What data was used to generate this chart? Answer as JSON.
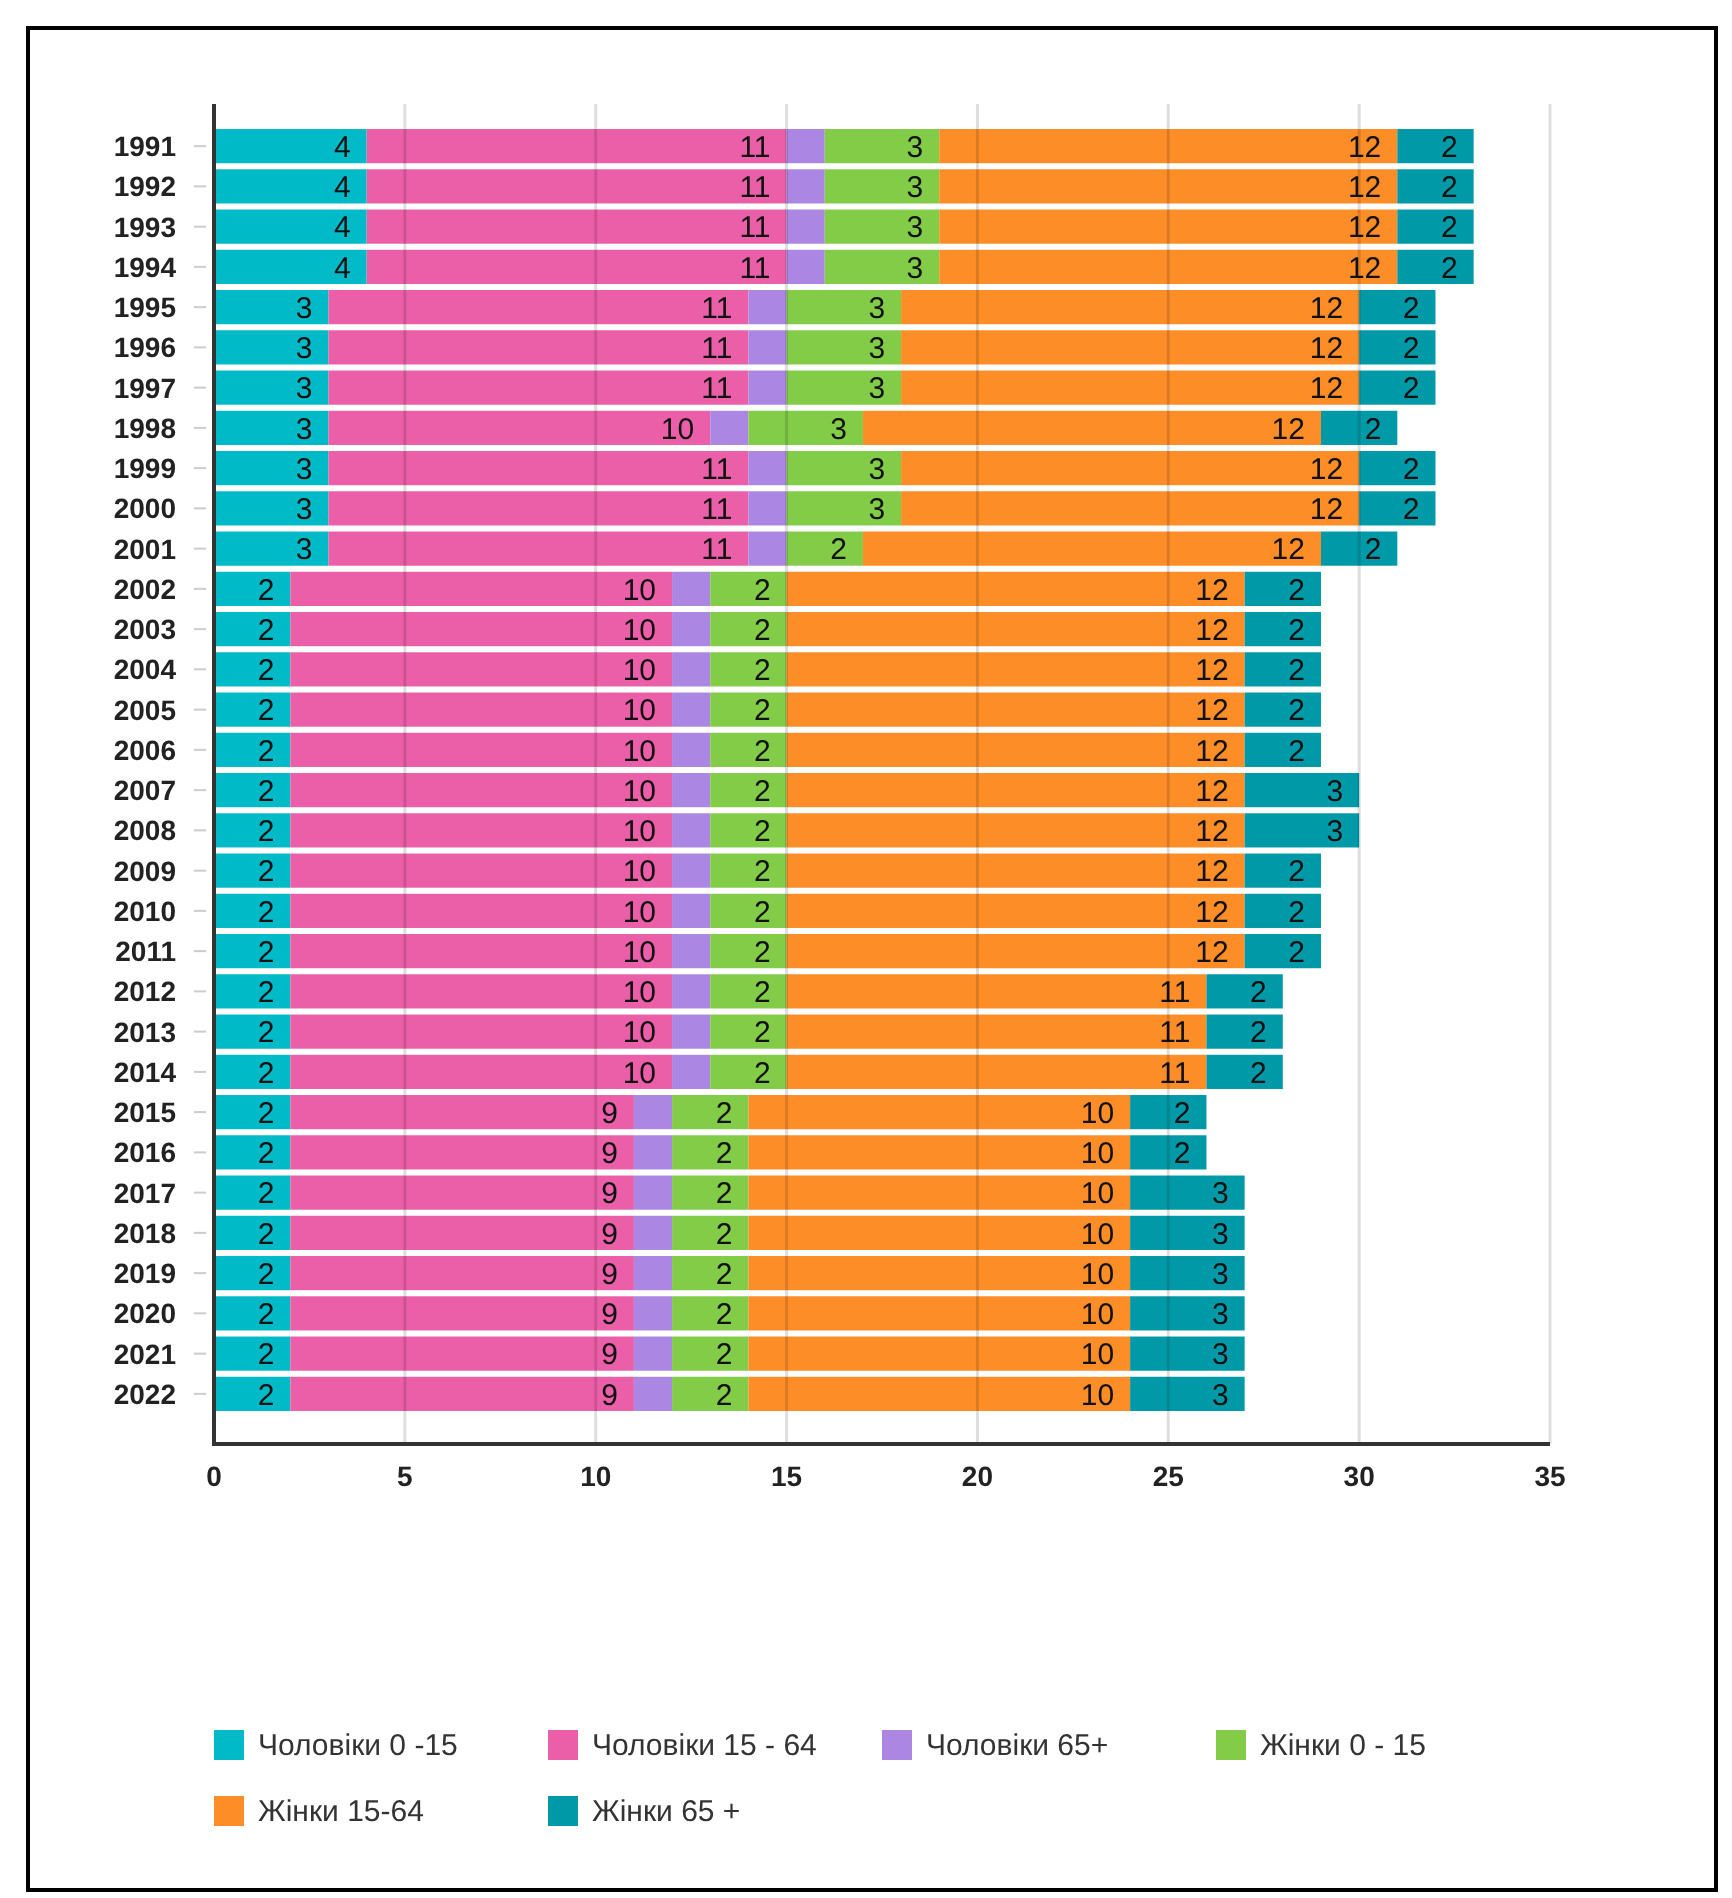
{
  "chart_data": {
    "type": "bar",
    "orientation": "horizontal",
    "stacked": true,
    "categories": [
      "1991",
      "1992",
      "1993",
      "1994",
      "1995",
      "1996",
      "1997",
      "1998",
      "1999",
      "2000",
      "2001",
      "2002",
      "2003",
      "2004",
      "2005",
      "2006",
      "2007",
      "2008",
      "2009",
      "2010",
      "2011",
      "2012",
      "2013",
      "2014",
      "2015",
      "2016",
      "2017",
      "2018",
      "2019",
      "2020",
      "2021",
      "2022"
    ],
    "xlim": [
      0,
      35
    ],
    "xticks": [
      0,
      5,
      10,
      15,
      20,
      25,
      30,
      35
    ],
    "grid": "x",
    "legend": "bottom",
    "series": [
      {
        "name": "Чоловіки 0 -15",
        "color": "#00bac8",
        "values": [
          4,
          4,
          4,
          4,
          3,
          3,
          3,
          3,
          3,
          3,
          3,
          2,
          2,
          2,
          2,
          2,
          2,
          2,
          2,
          2,
          2,
          2,
          2,
          2,
          2,
          2,
          2,
          2,
          2,
          2,
          2,
          2
        ],
        "value_labels": [
          "4",
          "4",
          "4",
          "4",
          "3",
          "3",
          "3",
          "3",
          "3",
          "3",
          "3",
          "2",
          "2",
          "2",
          "2",
          "2",
          "2",
          "2",
          "2",
          "2",
          "2",
          "2",
          "2",
          "2",
          "2",
          "2",
          "2",
          "2",
          "2",
          "2",
          "2",
          "2"
        ]
      },
      {
        "name": "Чоловіки 15 - 64",
        "color": "#eb5fa8",
        "values": [
          11,
          11,
          11,
          11,
          11,
          11,
          11,
          10,
          11,
          11,
          11,
          10,
          10,
          10,
          10,
          10,
          10,
          10,
          10,
          10,
          10,
          10,
          10,
          10,
          9,
          9,
          9,
          9,
          9,
          9,
          9,
          9
        ],
        "value_labels": [
          "11",
          "11",
          "11",
          "11",
          "11",
          "11",
          "11",
          "10",
          "11",
          "11",
          "11",
          "10",
          "10",
          "10",
          "10",
          "10",
          "10",
          "10",
          "10",
          "10",
          "10",
          "10",
          "10",
          "10",
          "9",
          "9",
          "9",
          "9",
          "9",
          "9",
          "9",
          "9"
        ]
      },
      {
        "name": "Чоловіки 65+",
        "color": "#ab87e3",
        "values": [
          1,
          1,
          1,
          1,
          1,
          1,
          1,
          1,
          1,
          1,
          1,
          1,
          1,
          1,
          1,
          1,
          1,
          1,
          1,
          1,
          1,
          1,
          1,
          1,
          1,
          1,
          1,
          1,
          1,
          1,
          1,
          1
        ]
      },
      {
        "name": "Жінки 0 - 15",
        "color": "#82cc47",
        "values": [
          3,
          3,
          3,
          3,
          3,
          3,
          3,
          3,
          3,
          3,
          2,
          2,
          2,
          2,
          2,
          2,
          2,
          2,
          2,
          2,
          2,
          2,
          2,
          2,
          2,
          2,
          2,
          2,
          2,
          2,
          2,
          2
        ],
        "value_labels": [
          "3",
          "3",
          "3",
          "3",
          "3",
          "3",
          "3",
          "3",
          "3",
          "3",
          "2",
          "2",
          "2",
          "2",
          "2",
          "2",
          "2",
          "2",
          "2",
          "2",
          "2",
          "2",
          "2",
          "2",
          "2",
          "2",
          "2",
          "2",
          "2",
          "2",
          "2",
          "2"
        ]
      },
      {
        "name": "Жінки 15-64",
        "color": "#fd8d27",
        "values": [
          12,
          12,
          12,
          12,
          12,
          12,
          12,
          12,
          12,
          12,
          12,
          12,
          12,
          12,
          12,
          12,
          12,
          12,
          12,
          12,
          12,
          11,
          11,
          11,
          10,
          10,
          10,
          10,
          10,
          10,
          10,
          10
        ],
        "value_labels": [
          "12",
          "12",
          "12",
          "12",
          "12",
          "12",
          "12",
          "12",
          "12",
          "12",
          "12",
          "12",
          "12",
          "12",
          "12",
          "12",
          "12",
          "12",
          "12",
          "12",
          "12",
          "11",
          "11",
          "11",
          "10",
          "10",
          "10",
          "10",
          "10",
          "10",
          "10",
          "10"
        ]
      },
      {
        "name": "Жінки 65 +",
        "color": "#0099a8",
        "values": [
          2,
          2,
          2,
          2,
          2,
          2,
          2,
          2,
          2,
          2,
          2,
          2,
          2,
          2,
          2,
          2,
          3,
          3,
          2,
          2,
          2,
          2,
          2,
          2,
          2,
          2,
          3,
          3,
          3,
          3,
          3,
          3
        ],
        "value_labels": [
          "2",
          "2",
          "2",
          "2",
          "2",
          "2",
          "2",
          "2",
          "2",
          "2",
          "2",
          "2",
          "2",
          "2",
          "2",
          "2",
          "3",
          "3",
          "2",
          "2",
          "2",
          "2",
          "2",
          "2",
          "2",
          "2",
          "3",
          "3",
          "3",
          "3",
          "3",
          "3"
        ]
      }
    ]
  }
}
